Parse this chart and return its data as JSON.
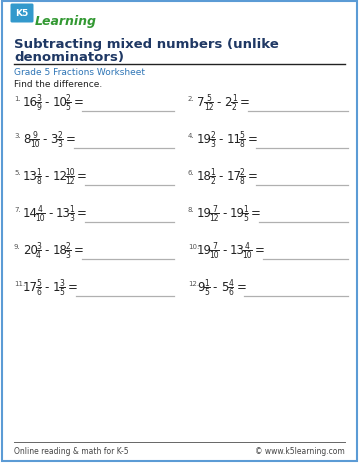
{
  "title_line1": "Subtracting mixed numbers (unlike",
  "title_line2": "denominators)",
  "subtitle": "Grade 5 Fractions Worksheet",
  "instruction": "Find the difference.",
  "bg_color": "#ffffff",
  "border_color": "#5b9bd5",
  "title_color": "#1f3864",
  "subtitle_color": "#2e75b6",
  "text_color": "#222222",
  "line_color": "#b0b0b0",
  "footer_line_color": "#555555",
  "problems": [
    {
      "num": "1.",
      "w1": "16",
      "n1": "3",
      "d1": "9",
      "w2": "10",
      "n2": "2",
      "d2": "5"
    },
    {
      "num": "2.",
      "w1": "7",
      "n1": "5",
      "d1": "12",
      "w2": "2",
      "n2": "1",
      "d2": "2"
    },
    {
      "num": "3.",
      "w1": "8",
      "n1": "9",
      "d1": "10",
      "w2": "3",
      "n2": "2",
      "d2": "3"
    },
    {
      "num": "4.",
      "w1": "19",
      "n1": "2",
      "d1": "3",
      "w2": "11",
      "n2": "5",
      "d2": "8"
    },
    {
      "num": "5.",
      "w1": "13",
      "n1": "1",
      "d1": "8",
      "w2": "12",
      "n2": "10",
      "d2": "12"
    },
    {
      "num": "6.",
      "w1": "18",
      "n1": "1",
      "d1": "2",
      "w2": "17",
      "n2": "2",
      "d2": "8"
    },
    {
      "num": "7.",
      "w1": "14",
      "n1": "4",
      "d1": "10",
      "w2": "13",
      "n2": "1",
      "d2": "3"
    },
    {
      "num": "8.",
      "w1": "19",
      "n1": "7",
      "d1": "12",
      "w2": "19",
      "n2": "1",
      "d2": "5"
    },
    {
      "num": "9.",
      "w1": "20",
      "n1": "3",
      "d1": "4",
      "w2": "18",
      "n2": "2",
      "d2": "3"
    },
    {
      "num": "10.",
      "w1": "19",
      "n1": "7",
      "d1": "10",
      "w2": "13",
      "n2": "4",
      "d2": "10"
    },
    {
      "num": "11.",
      "w1": "17",
      "n1": "5",
      "d1": "6",
      "w2": "1",
      "n2": "3",
      "d2": "5"
    },
    {
      "num": "12.",
      "w1": "9",
      "n1": "1",
      "d1": "5",
      "w2": "5",
      "n2": "4",
      "d2": "6"
    }
  ],
  "footer_left": "Online reading & math for K-5",
  "footer_right": "© www.k5learning.com"
}
